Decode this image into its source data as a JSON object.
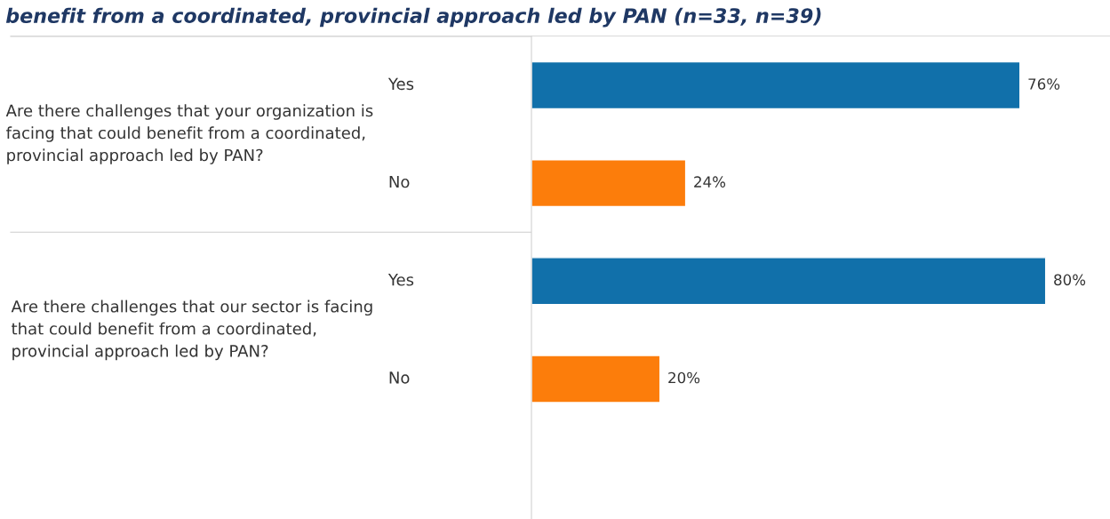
{
  "chart_data": {
    "type": "bar",
    "orientation": "horizontal",
    "title": "benefit from a coordinated, provincial approach led by PAN (n=33, n=39)",
    "categories": [
      "Yes",
      "No",
      "Yes",
      "No"
    ],
    "values": [
      76,
      24,
      80,
      20
    ],
    "value_labels": [
      "76%",
      "24%",
      "80%",
      "20%"
    ],
    "colors": [
      "#1170aa",
      "#fc7d0b",
      "#1170aa",
      "#fc7d0b"
    ],
    "annotations": [
      "Are there challenges that your organization is facing that could benefit from a coordinated, provincial approach led by PAN?",
      "Are there challenges that our sector is facing that could benefit from a coordinated, provincial approach led by PAN?"
    ]
  }
}
